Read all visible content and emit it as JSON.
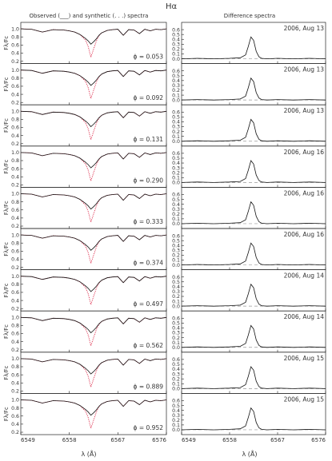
{
  "figure": {
    "title": "Hα",
    "left_header": "Observed (___) and synthetic (. . .) spectra",
    "right_header": "Difference spectra",
    "left_ylabel": "Fλ/Fc",
    "left_xlabel": "λ (Å)",
    "right_xlabel": "λ (Å)",
    "colors": {
      "observed": "#111111",
      "synthetic": "#dd2a4a",
      "zero_line": "#9a9a9a"
    }
  },
  "chart_data": [
    {
      "type": "line",
      "title": "Observed (___) and synthetic (. . .) spectra",
      "xlabel": "λ (Å)",
      "ylabel": "Fλ/Fc",
      "xlim": [
        6549,
        6576
      ],
      "xticks": [
        "6549",
        "6558",
        "6567",
        "6576"
      ],
      "ylim": [
        0.2,
        1.1
      ],
      "yticks": [
        "0.2",
        "0.4",
        "0.6",
        "0.8",
        "1.0"
      ],
      "phases": [
        "ϕ = 0.053",
        "ϕ = 0.092",
        "ϕ = 0.131",
        "ϕ = 0.290",
        "ϕ = 0.333",
        "ϕ = 0.374",
        "ϕ = 0.497",
        "ϕ = 0.562",
        "ϕ = 0.889",
        "ϕ = 0.952"
      ],
      "x": [
        6549,
        6551,
        6553,
        6555,
        6557,
        6558,
        6559,
        6560,
        6561,
        6561.5,
        6562,
        6562.5,
        6563,
        6563.5,
        6564,
        6565,
        6566,
        6567,
        6568,
        6569,
        6570,
        6571,
        6572,
        6573,
        6574,
        6575,
        6576
      ],
      "series": [
        {
          "name": "observed",
          "values": [
            1.0,
            0.99,
            0.92,
            0.98,
            0.97,
            0.95,
            0.92,
            0.86,
            0.76,
            0.7,
            0.62,
            0.68,
            0.75,
            0.84,
            0.9,
            0.96,
            0.98,
            0.99,
            0.84,
            0.98,
            0.97,
            0.88,
            0.99,
            0.95,
            0.99,
            0.98,
            1.0
          ]
        },
        {
          "name": "synthetic",
          "values": [
            1.0,
            0.99,
            0.92,
            0.98,
            0.97,
            0.95,
            0.92,
            0.86,
            0.72,
            0.56,
            0.3,
            0.5,
            0.7,
            0.83,
            0.9,
            0.96,
            0.98,
            0.99,
            0.84,
            0.98,
            0.97,
            0.88,
            0.99,
            0.95,
            0.99,
            0.98,
            1.0
          ]
        }
      ]
    },
    {
      "type": "line",
      "title": "Difference spectra",
      "xlabel": "λ (Å)",
      "xlim": [
        6549,
        6576
      ],
      "xticks": [
        "6549",
        "6558",
        "6567",
        "6576"
      ],
      "ylim": [
        -0.05,
        0.7
      ],
      "yticks": [
        "0.0",
        "0.1",
        "0.2",
        "0.3",
        "0.4",
        "0.5",
        "0.6"
      ],
      "dates": [
        "2006, Aug 13",
        "2006, Aug 13",
        "2006, Aug 13",
        "2006, Aug 16",
        "2006, Aug 16",
        "2006, Aug 16",
        "2006, Aug 14",
        "2006, Aug 14",
        "2006, Aug 15",
        "2006, Aug 15"
      ],
      "x": [
        6549,
        6552,
        6555,
        6558,
        6560,
        6561,
        6561.5,
        6562,
        6562.5,
        6563,
        6563.5,
        6564,
        6565,
        6567,
        6570,
        6573,
        6576
      ],
      "series": [
        {
          "name": "difference",
          "values": [
            0.0,
            0.01,
            0.0,
            0.01,
            0.02,
            0.08,
            0.25,
            0.45,
            0.38,
            0.15,
            0.04,
            0.01,
            0.0,
            0.01,
            0.0,
            0.01,
            0.0
          ]
        }
      ]
    }
  ]
}
